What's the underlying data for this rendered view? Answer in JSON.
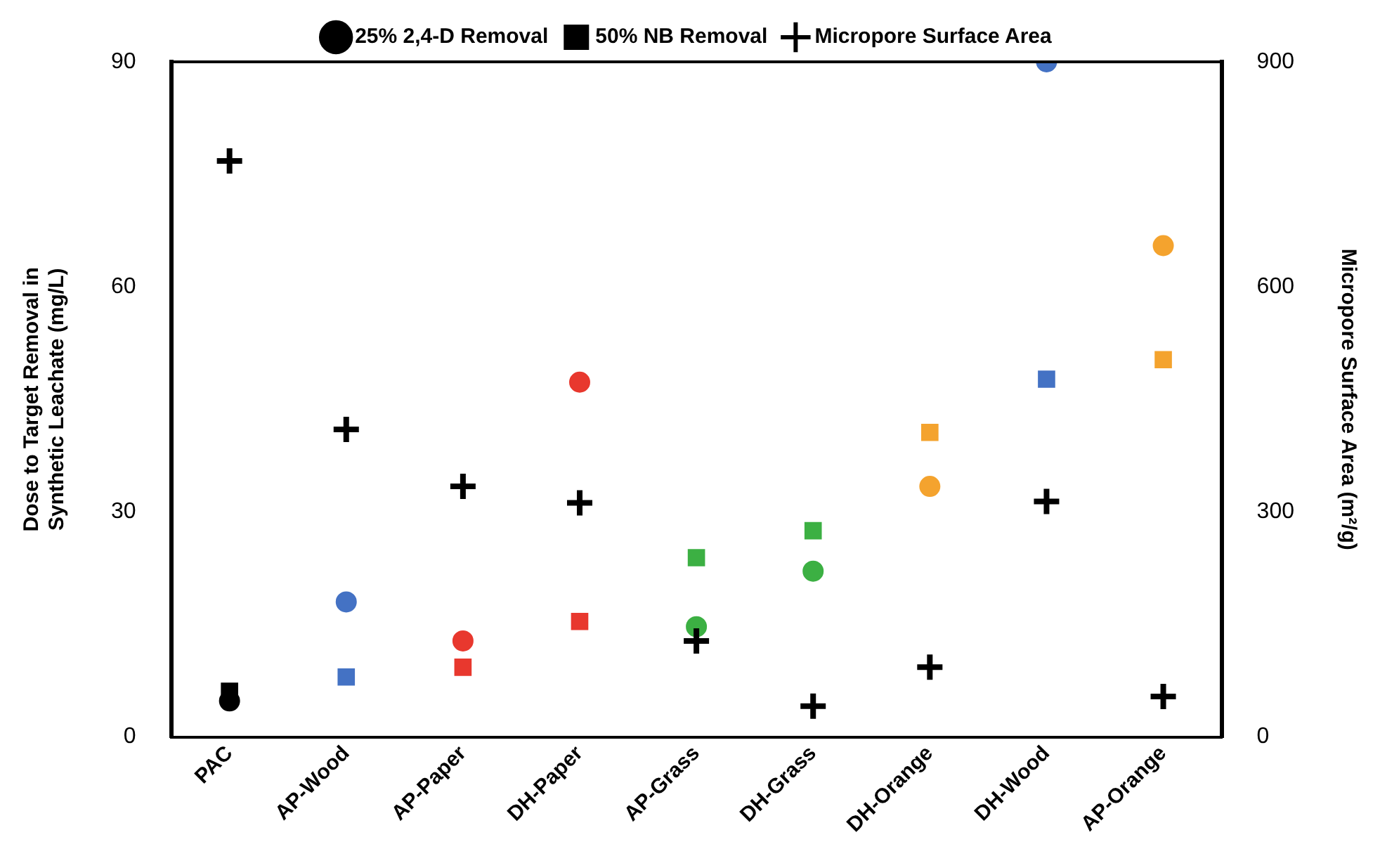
{
  "chart_data": {
    "type": "scatter",
    "ylabel": "Dose to Target Removal in Synthetic Leachate (mg/L)",
    "y2label": "Micropore Surface Area (m²/g)",
    "categories": [
      "PAC",
      "AP-Wood",
      "AP-Paper",
      "DH-Paper",
      "AP-Grass",
      "DH-Grass",
      "DH-Orange",
      "DH-Wood",
      "AP-Orange"
    ],
    "series": [
      {
        "name": "25% 2,4-D Removal",
        "marker": "circle",
        "color": "#000000",
        "colors": [
          "#000000",
          "#4472c4",
          "#e8382e",
          "#e8382e",
          "#3cb043",
          "#3cb043",
          "#f4a32e",
          "#4472c4",
          "#f4a32e"
        ],
        "values": [
          4.8,
          18,
          12.8,
          47.3,
          14.7,
          22.1,
          33.4,
          90,
          65.5
        ]
      },
      {
        "name": "50% NB Removal",
        "marker": "square",
        "color": "#000000",
        "colors": [
          "#000000",
          "#4472c4",
          "#e8382e",
          "#e8382e",
          "#3cb043",
          "#3cb043",
          "#f4a32e",
          "#4472c4",
          "#f4a32e"
        ],
        "values": [
          6.1,
          8,
          9.3,
          15.4,
          23.9,
          27.5,
          40.6,
          47.7,
          50.3
        ]
      },
      {
        "name": "Micropore Surface Area",
        "marker": "cross",
        "color": "#000000",
        "axis": "y2",
        "values": [
          768,
          410,
          334,
          312,
          128,
          41,
          93,
          314,
          54
        ]
      }
    ],
    "ylim": [
      0,
      90
    ],
    "yticks": [
      0,
      30,
      60,
      90
    ],
    "y2lim": [
      0,
      900
    ],
    "y2ticks": [
      0,
      300,
      600,
      900
    ],
    "grid": false,
    "legend": "top"
  }
}
